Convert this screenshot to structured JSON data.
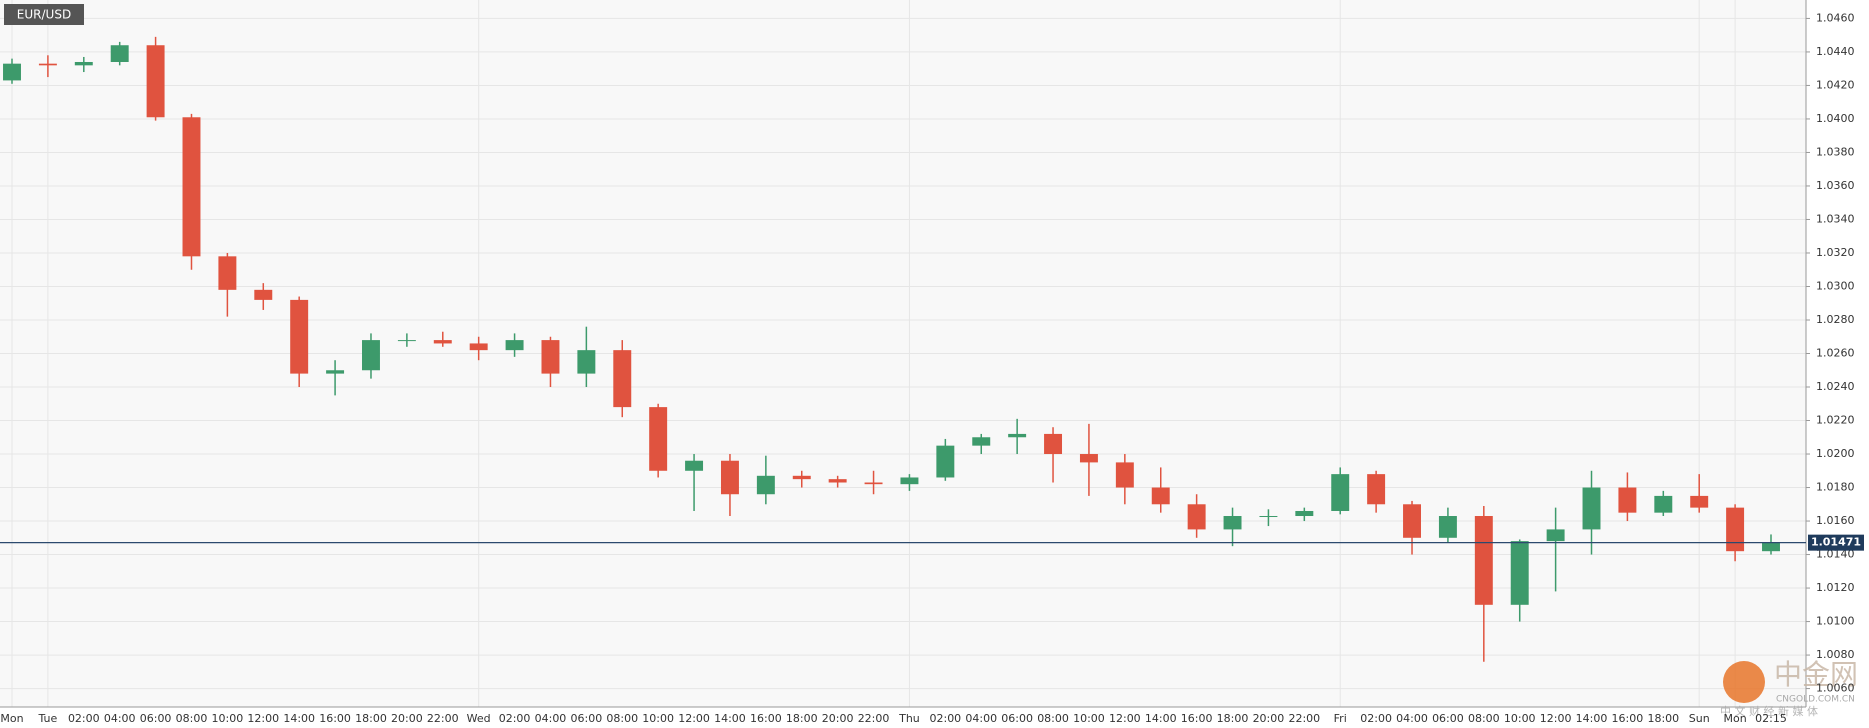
{
  "chart_data": {
    "type": "candlestick",
    "title": "EUR/USD",
    "categories": [
      "Mon",
      "Tue",
      "02:00",
      "04:00",
      "06:00",
      "08:00",
      "10:00",
      "12:00",
      "14:00",
      "16:00",
      "18:00",
      "20:00",
      "22:00",
      "Wed",
      "02:00",
      "04:00",
      "06:00",
      "08:00",
      "10:00",
      "12:00",
      "14:00",
      "16:00",
      "18:00",
      "20:00",
      "22:00",
      "Thu",
      "02:00",
      "04:00",
      "06:00",
      "08:00",
      "10:00",
      "12:00",
      "14:00",
      "16:00",
      "18:00",
      "20:00",
      "22:00",
      "Fri",
      "02:00",
      "04:00",
      "06:00",
      "08:00",
      "10:00",
      "12:00",
      "14:00",
      "16:00",
      "18:00",
      "Sun",
      "Mon",
      "02:15"
    ],
    "open": [
      1.0423,
      1.0433,
      1.0432,
      1.0434,
      1.0444,
      1.0401,
      1.0318,
      1.0298,
      1.0292,
      1.0248,
      1.025,
      1.0268,
      1.0268,
      1.0266,
      1.0262,
      1.0268,
      1.0248,
      1.0262,
      1.0228,
      1.019,
      1.0196,
      1.0176,
      1.0187,
      1.0185,
      1.0183,
      1.0182,
      1.0186,
      1.0205,
      1.021,
      1.0212,
      1.02,
      1.0195,
      1.018,
      1.017,
      1.0155,
      1.0163,
      1.0163,
      1.0166,
      1.0188,
      1.017,
      1.015,
      1.0163,
      1.011,
      1.0148,
      1.0155,
      1.018,
      1.0165,
      1.0175,
      1.0168,
      1.0142
    ],
    "high": [
      1.0436,
      1.0438,
      1.0437,
      1.0446,
      1.0449,
      1.0403,
      1.032,
      1.0302,
      1.0294,
      1.0256,
      1.0272,
      1.0272,
      1.0273,
      1.027,
      1.0272,
      1.027,
      1.0276,
      1.0268,
      1.023,
      1.02,
      1.02,
      1.0199,
      1.019,
      1.0187,
      1.019,
      1.0188,
      1.0209,
      1.0212,
      1.0221,
      1.0216,
      1.0218,
      1.02,
      1.0192,
      1.0176,
      1.0168,
      1.0167,
      1.0168,
      1.0192,
      1.019,
      1.0172,
      1.0168,
      1.0169,
      1.0149,
      1.0168,
      1.019,
      1.0189,
      1.0178,
      1.0188,
      1.017,
      1.0152
    ],
    "low": [
      1.0421,
      1.0425,
      1.0428,
      1.0432,
      1.0399,
      1.031,
      1.0282,
      1.0286,
      1.024,
      1.0235,
      1.0245,
      1.0264,
      1.0264,
      1.0256,
      1.0258,
      1.024,
      1.024,
      1.0222,
      1.0186,
      1.0166,
      1.0163,
      1.017,
      1.018,
      1.018,
      1.0176,
      1.0178,
      1.0184,
      1.02,
      1.02,
      1.0183,
      1.0175,
      1.017,
      1.0165,
      1.015,
      1.0145,
      1.0157,
      1.016,
      1.0164,
      1.0165,
      1.014,
      1.0147,
      1.0076,
      1.01,
      1.0118,
      1.014,
      1.016,
      1.0163,
      1.0165,
      1.0136,
      1.014
    ],
    "close": [
      1.0433,
      1.0432,
      1.0434,
      1.0444,
      1.0401,
      1.0318,
      1.0298,
      1.0292,
      1.0248,
      1.025,
      1.0268,
      1.0268,
      1.0266,
      1.0262,
      1.0268,
      1.0248,
      1.0262,
      1.0228,
      1.019,
      1.0196,
      1.0176,
      1.0187,
      1.0185,
      1.0183,
      1.0182,
      1.0186,
      1.0205,
      1.021,
      1.0212,
      1.02,
      1.0195,
      1.018,
      1.017,
      1.0155,
      1.0163,
      1.0163,
      1.0166,
      1.0188,
      1.017,
      1.015,
      1.0163,
      1.011,
      1.0148,
      1.0155,
      1.018,
      1.0165,
      1.0175,
      1.0168,
      1.0142,
      1.0147
    ],
    "up_color": "#3d9a6b",
    "down_color": "#e0533f",
    "current_price": 1.01471,
    "ylim": [
      1.0049,
      1.0471
    ],
    "yticks": [
      {
        "value": 1.006,
        "label": "1.0060"
      },
      {
        "value": 1.008,
        "label": "1.0080"
      },
      {
        "value": 1.01,
        "label": "1.0100"
      },
      {
        "value": 1.012,
        "label": "1.0120"
      },
      {
        "value": 1.014,
        "label": "1.0140"
      },
      {
        "value": 1.016,
        "label": "1.0160"
      },
      {
        "value": 1.018,
        "label": "1.0180"
      },
      {
        "value": 1.02,
        "label": "1.0200"
      },
      {
        "value": 1.022,
        "label": "1.0220"
      },
      {
        "value": 1.024,
        "label": "1.0240"
      },
      {
        "value": 1.026,
        "label": "1.0260"
      },
      {
        "value": 1.028,
        "label": "1.0280"
      },
      {
        "value": 1.03,
        "label": "1.0300"
      },
      {
        "value": 1.032,
        "label": "1.0320"
      },
      {
        "value": 1.034,
        "label": "1.0340"
      },
      {
        "value": 1.036,
        "label": "1.0360"
      },
      {
        "value": 1.038,
        "label": "1.0380"
      },
      {
        "value": 1.04,
        "label": "1.0400"
      },
      {
        "value": 1.042,
        "label": "1.0420"
      },
      {
        "value": 1.044,
        "label": "1.0440"
      },
      {
        "value": 1.046,
        "label": "1.0460"
      }
    ],
    "grid": true
  },
  "watermark": {
    "name": "中金网",
    "site": "CNGOLD.COM.CN",
    "slogan": "中 文 财 经 新 媒 体"
  }
}
